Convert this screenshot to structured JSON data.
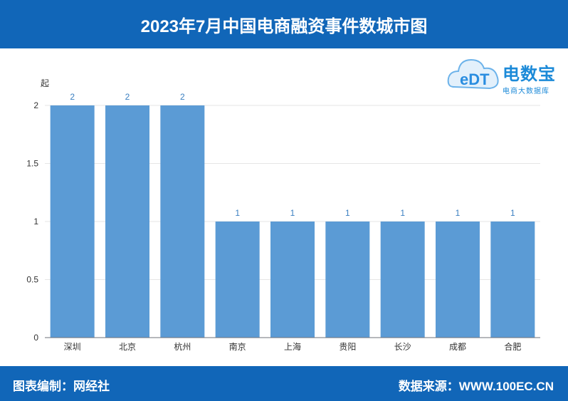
{
  "header": {
    "title": "2023年7月中国电商融资事件数城市图"
  },
  "logo": {
    "name": "电数宝",
    "subtitle": "电商大数据库",
    "mark": "eDT",
    "color": "#1c8ad8"
  },
  "footer": {
    "left": "图表编制：网经社",
    "right": "数据来源：WWW.100EC.CN"
  },
  "colors": {
    "header_bg": "#1166b8",
    "bar": "#5b9bd5",
    "value_label": "#3a7fc1"
  },
  "chart_data": {
    "type": "bar",
    "categories": [
      "深圳",
      "北京",
      "杭州",
      "南京",
      "上海",
      "贵阳",
      "长沙",
      "成都",
      "合肥"
    ],
    "values": [
      2,
      2,
      2,
      1,
      1,
      1,
      1,
      1,
      1
    ],
    "title": "2023年7月中国电商融资事件数城市图",
    "ylabel": "起",
    "ylim": [
      0,
      2
    ],
    "yticks": [
      "0",
      "0.5",
      "1",
      "1.5",
      "2"
    ],
    "grid": true
  }
}
